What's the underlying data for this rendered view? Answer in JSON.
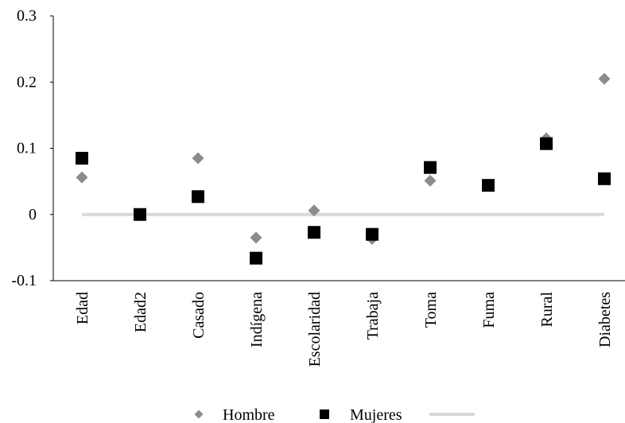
{
  "chart_data": {
    "type": "scatter",
    "title": "",
    "xlabel": "",
    "ylabel": "",
    "categories": [
      "Edad",
      "Edad2",
      "Casado",
      "Indígena",
      "Escolaridad",
      "Trabaja",
      "Toma",
      "Fuma",
      "Rural",
      "Diabetes"
    ],
    "ylim": [
      -0.1,
      0.3
    ],
    "y_ticks": [
      {
        "value": -0.1,
        "label": "-0.1"
      },
      {
        "value": 0,
        "label": "0"
      },
      {
        "value": 0.1,
        "label": "0.1"
      },
      {
        "value": 0.2,
        "label": "0.2"
      },
      {
        "value": 0.3,
        "label": "0.3"
      }
    ],
    "grid": false,
    "legend_position": "bottom",
    "series": [
      {
        "name": "Hombre",
        "marker": "diamond",
        "color": "#8c8c8c",
        "values": [
          0.056,
          0.0,
          0.085,
          -0.035,
          0.006,
          -0.037,
          0.051,
          0.044,
          0.115,
          0.205
        ]
      },
      {
        "name": "Mujeres",
        "marker": "square",
        "color": "#000000",
        "values": [
          0.085,
          0.0,
          0.027,
          -0.066,
          -0.027,
          -0.03,
          0.071,
          0.044,
          0.107,
          0.054
        ]
      },
      {
        "name": "",
        "marker": "line",
        "color": "#d9d9d9",
        "values": [
          0,
          0,
          0,
          0,
          0,
          0,
          0,
          0,
          0,
          0
        ]
      }
    ]
  }
}
